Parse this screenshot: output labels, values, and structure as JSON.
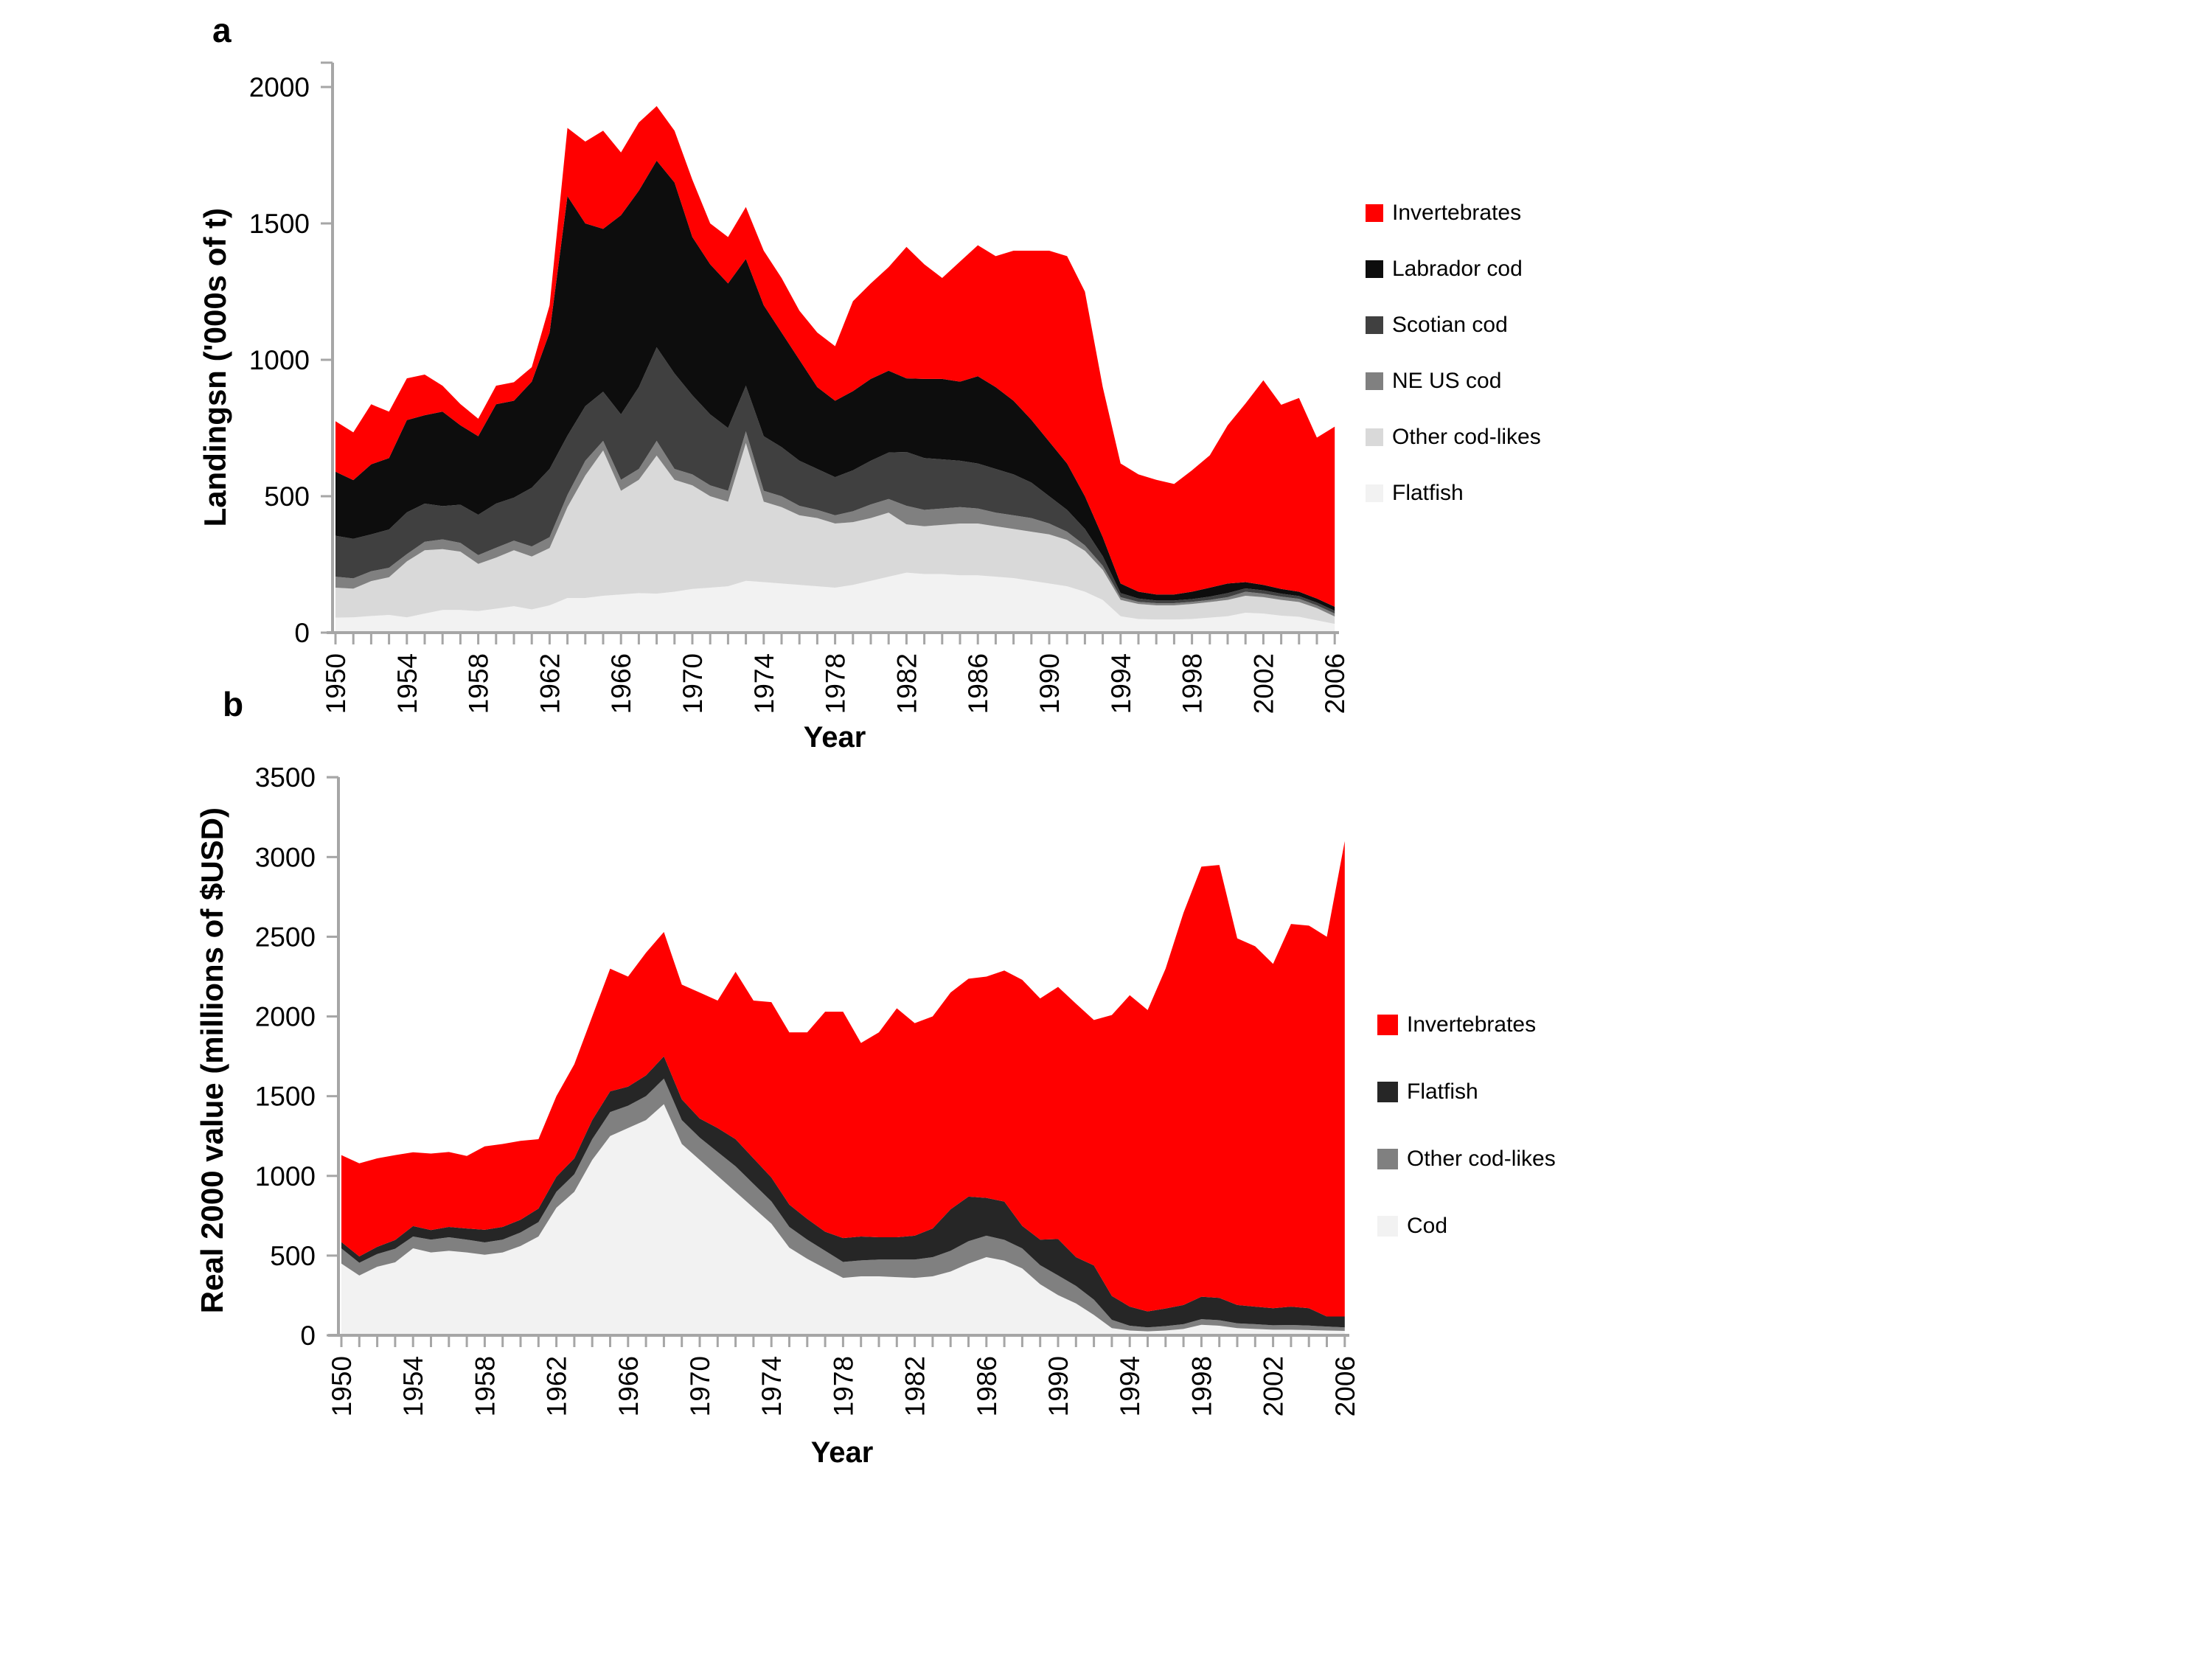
{
  "page": {
    "background": "#ffffff",
    "axis_color": "#a6a6a6"
  },
  "charts": {
    "a": {
      "panel_label": "a",
      "y_title": "Landingsn ('000s of t)",
      "x_title": "Year"
    },
    "b": {
      "panel_label": "b",
      "y_title": "Real 2000 value (millions of $USD)",
      "x_title": "Year"
    }
  },
  "chart_data": [
    {
      "id": "a",
      "type": "area",
      "stacked": true,
      "title": "",
      "xlabel": "Year",
      "ylabel": "Landingsn ('000s of t)",
      "x": [
        1950,
        1951,
        1952,
        1953,
        1954,
        1955,
        1956,
        1957,
        1958,
        1959,
        1960,
        1961,
        1962,
        1963,
        1964,
        1965,
        1966,
        1967,
        1968,
        1969,
        1970,
        1971,
        1972,
        1973,
        1974,
        1975,
        1976,
        1977,
        1978,
        1979,
        1980,
        1981,
        1982,
        1983,
        1984,
        1985,
        1986,
        1987,
        1988,
        1989,
        1990,
        1991,
        1992,
        1993,
        1994,
        1995,
        1996,
        1997,
        1998,
        1999,
        2000,
        2001,
        2002,
        2003,
        2004,
        2005,
        2006
      ],
      "x_tick_label_step": 4,
      "ylim": [
        0,
        2000
      ],
      "y_ticks": [
        0,
        500,
        1000,
        1500,
        2000
      ],
      "grid": false,
      "legend_position": "right",
      "legend_order_top_to_bottom": [
        "Invertebrates",
        "Labrador cod",
        "Scotian cod",
        "NE US cod",
        "Other cod-likes",
        "Flatfish"
      ],
      "series": [
        {
          "name": "Flatfish",
          "color": "#f2f2f2",
          "values": [
            55,
            56,
            61,
            65,
            56,
            70,
            83,
            83,
            79,
            88,
            97,
            85,
            100,
            127,
            127,
            135,
            140,
            145,
            143,
            150,
            160,
            165,
            170,
            190,
            185,
            180,
            175,
            170,
            165,
            175,
            190,
            205,
            220,
            215,
            215,
            210,
            210,
            205,
            200,
            190,
            180,
            170,
            150,
            120,
            60,
            50,
            48,
            48,
            50,
            55,
            60,
            73,
            70,
            62,
            58,
            45,
            32
          ]
        },
        {
          "name": "Other cod-likes",
          "color": "#d9d9d9",
          "values": [
            110,
            105,
            128,
            138,
            205,
            232,
            223,
            214,
            173,
            187,
            205,
            194,
            210,
            333,
            449,
            533,
            380,
            415,
            506,
            410,
            380,
            335,
            310,
            505,
            295,
            280,
            255,
            250,
            235,
            230,
            230,
            235,
            177,
            175,
            180,
            190,
            190,
            185,
            180,
            180,
            180,
            170,
            150,
            110,
            60,
            55,
            52,
            52,
            55,
            57,
            60,
            62,
            60,
            58,
            54,
            45,
            27
          ]
        },
        {
          "name": "NE US cod",
          "color": "#808080",
          "values": [
            40,
            38,
            36,
            35,
            27,
            31,
            36,
            32,
            32,
            36,
            35,
            37,
            40,
            45,
            54,
            35,
            40,
            40,
            54,
            40,
            40,
            40,
            40,
            43,
            40,
            40,
            35,
            30,
            30,
            40,
            50,
            50,
            68,
            60,
            60,
            60,
            55,
            50,
            50,
            50,
            40,
            30,
            20,
            15,
            10,
            8,
            8,
            8,
            8,
            8,
            10,
            15,
            13,
            12,
            12,
            10,
            11
          ]
        },
        {
          "name": "Scotian cod",
          "color": "#404040",
          "values": [
            150,
            145,
            135,
            140,
            153,
            140,
            122,
            140,
            148,
            162,
            158,
            215,
            250,
            217,
            200,
            180,
            240,
            300,
            343,
            350,
            290,
            260,
            230,
            167,
            200,
            180,
            165,
            150,
            140,
            150,
            160,
            170,
            197,
            190,
            180,
            170,
            165,
            160,
            150,
            130,
            100,
            80,
            60,
            35,
            15,
            12,
            10,
            10,
            10,
            12,
            15,
            12,
            12,
            11,
            10,
            10,
            10
          ]
        },
        {
          "name": "Labrador cod",
          "color": "#0d0d0d",
          "values": [
            235,
            215,
            257,
            262,
            338,
            324,
            346,
            291,
            288,
            364,
            355,
            389,
            500,
            878,
            670,
            597,
            730,
            720,
            684,
            700,
            580,
            550,
            530,
            465,
            480,
            420,
            370,
            300,
            280,
            290,
            300,
            300,
            270,
            290,
            295,
            290,
            320,
            300,
            270,
            230,
            200,
            170,
            120,
            70,
            35,
            25,
            22,
            22,
            27,
            33,
            35,
            23,
            20,
            17,
            16,
            15,
            15
          ]
        },
        {
          "name": "Invertebrates",
          "color": "#ff0000",
          "values": [
            185,
            175,
            220,
            170,
            153,
            149,
            95,
            78,
            64,
            68,
            68,
            53,
            100,
            250,
            300,
            360,
            230,
            250,
            200,
            190,
            210,
            150,
            170,
            190,
            200,
            200,
            180,
            200,
            200,
            330,
            350,
            380,
            482,
            420,
            370,
            440,
            480,
            480,
            550,
            620,
            700,
            760,
            750,
            550,
            440,
            430,
            420,
            405,
            445,
            485,
            580,
            655,
            750,
            675,
            710,
            590,
            660
          ]
        }
      ]
    },
    {
      "id": "b",
      "type": "area",
      "stacked": true,
      "title": "",
      "xlabel": "Year",
      "ylabel": "Real 2000 value (millions of $USD)",
      "x": [
        1950,
        1951,
        1952,
        1953,
        1954,
        1955,
        1956,
        1957,
        1958,
        1959,
        1960,
        1961,
        1962,
        1963,
        1964,
        1965,
        1966,
        1967,
        1968,
        1969,
        1970,
        1971,
        1972,
        1973,
        1974,
        1975,
        1976,
        1977,
        1978,
        1979,
        1980,
        1981,
        1982,
        1983,
        1984,
        1985,
        1986,
        1987,
        1988,
        1989,
        1990,
        1991,
        1992,
        1993,
        1994,
        1995,
        1996,
        1997,
        1998,
        1999,
        2000,
        2001,
        2002,
        2003,
        2004,
        2005,
        2006
      ],
      "x_tick_label_step": 4,
      "ylim": [
        0,
        3500
      ],
      "y_ticks": [
        0,
        500,
        1000,
        1500,
        2000,
        2500,
        3000,
        3500
      ],
      "grid": false,
      "legend_position": "right",
      "legend_order_top_to_bottom": [
        "Invertebrates",
        "Flatfish",
        "Other cod-likes",
        "Cod"
      ],
      "series": [
        {
          "name": "Cod",
          "color": "#f2f2f2",
          "values": [
            450,
            375,
            430,
            458,
            546,
            520,
            530,
            520,
            505,
            520,
            560,
            620,
            800,
            900,
            1100,
            1250,
            1300,
            1350,
            1450,
            1200,
            1100,
            1000,
            900,
            800,
            700,
            550,
            480,
            420,
            360,
            370,
            370,
            365,
            360,
            370,
            400,
            450,
            490,
            469,
            420,
            320,
            252,
            200,
            128,
            45,
            30,
            25,
            30,
            40,
            66,
            60,
            45,
            40,
            35,
            35,
            33,
            30,
            28
          ]
        },
        {
          "name": "Other cod-likes",
          "color": "#808080",
          "values": [
            95,
            80,
            80,
            85,
            74,
            80,
            85,
            80,
            78,
            80,
            85,
            90,
            100,
            110,
            130,
            150,
            140,
            150,
            160,
            150,
            140,
            150,
            160,
            150,
            140,
            130,
            120,
            110,
            100,
            100,
            105,
            110,
            115,
            120,
            130,
            140,
            135,
            130,
            125,
            120,
            124,
            110,
            96,
            52,
            30,
            25,
            28,
            30,
            35,
            35,
            30,
            30,
            28,
            30,
            28,
            25,
            22
          ]
        },
        {
          "name": "Flatfish",
          "color": "#262626",
          "values": [
            40,
            40,
            45,
            55,
            65,
            60,
            65,
            70,
            79,
            80,
            80,
            85,
            95,
            100,
            120,
            130,
            120,
            130,
            140,
            130,
            120,
            150,
            170,
            160,
            150,
            140,
            130,
            120,
            150,
            150,
            140,
            140,
            150,
            180,
            260,
            280,
            237,
            240,
            141,
            160,
            228,
            180,
            214,
            150,
            120,
            100,
            110,
            120,
            141,
            140,
            115,
            110,
            107,
            115,
            109,
            63,
            68
          ]
        },
        {
          "name": "Invertebrates",
          "color": "#ff0000",
          "values": [
            545,
            584,
            555,
            532,
            463,
            480,
            470,
            455,
            523,
            520,
            495,
            435,
            505,
            590,
            650,
            770,
            690,
            770,
            780,
            720,
            790,
            800,
            1050,
            990,
            1100,
            1080,
            1170,
            1380,
            1420,
            1214,
            1285,
            1436,
            1333,
            1330,
            1360,
            1367,
            1388,
            1449,
            1544,
            1513,
            1581,
            1590,
            1540,
            1762,
            1953,
            1890,
            2132,
            2460,
            2698,
            2715,
            2300,
            2260,
            2160,
            2400,
            2400,
            2382,
            2982
          ]
        }
      ]
    }
  ]
}
